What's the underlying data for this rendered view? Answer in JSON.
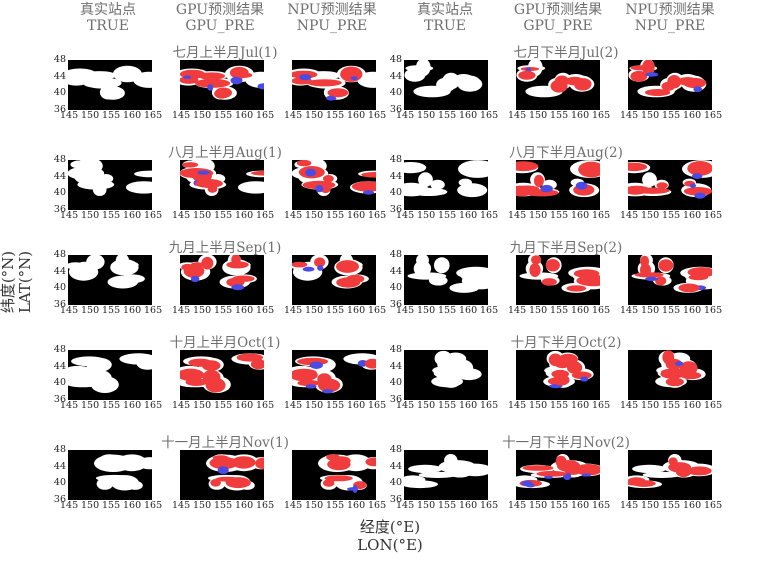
{
  "headers": [
    {
      "line1": "真实站点",
      "line2": "TRUE"
    },
    {
      "line1": "GPU预测结果",
      "line2": "GPU_PRE"
    },
    {
      "line1": "NPU预测结果",
      "line2": "NPU_PRE"
    },
    {
      "line1": "真实站点",
      "line2": "TRUE"
    },
    {
      "line1": "GPU预测结果",
      "line2": "GPU_PRE"
    },
    {
      "line1": "NPU预测结果",
      "line2": "NPU_PRE"
    }
  ],
  "axes": {
    "ylabel_cn": "纬度(°N)",
    "ylabel_en": "LAT(°N)",
    "xlabel_cn": "经度(°E)",
    "xlabel_en": "LON(°E)",
    "xticks": [
      "145",
      "150",
      "155",
      "160",
      "165"
    ],
    "yticks": [
      "48",
      "44",
      "40",
      "36"
    ]
  },
  "colors": {
    "background": "#000000",
    "true_region": "#ffffff",
    "red": "#f03c3c",
    "blue": "#4a4ae6"
  },
  "chart_data": {
    "type": "heatmap",
    "xlim": [
      145,
      165
    ],
    "ylim": [
      36,
      48
    ],
    "rows": [
      {
        "left_title": "七月上半月Jul(1)",
        "right_title": "七月下半月Jul(2)"
      },
      {
        "left_title": "八月上半月Aug(1)",
        "right_title": "八月下半月Aug(2)"
      },
      {
        "left_title": "九月上半月Sep(1)",
        "right_title": "九月下半月Sep(2)"
      },
      {
        "left_title": "十月上半月Oct(1)",
        "right_title": "十月下半月Oct(2)"
      },
      {
        "left_title": "十一月上半月Nov(1)",
        "right_title": "十一月下半月Nov(2)"
      }
    ]
  }
}
